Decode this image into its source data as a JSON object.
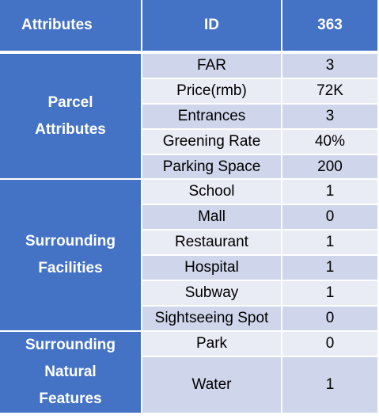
{
  "header": {
    "col1": "Attributes",
    "col2": "ID",
    "col3": "363"
  },
  "groups": [
    {
      "label_lines": [
        "Parcel",
        "Attributes"
      ]
    },
    {
      "label_lines": [
        "Surrounding",
        "Facilities"
      ]
    },
    {
      "label_lines": [
        "Surrounding",
        "Natural",
        "Features"
      ]
    }
  ],
  "rows": [
    {
      "attribute": "FAR",
      "value": "3"
    },
    {
      "attribute": "Price(rmb)",
      "value": "72K"
    },
    {
      "attribute": "Entrances",
      "value": "3"
    },
    {
      "attribute": "Greening Rate",
      "value": "40%"
    },
    {
      "attribute": "Parking Space",
      "value": "200"
    },
    {
      "attribute": "School",
      "value": "1"
    },
    {
      "attribute": "Mall",
      "value": "0"
    },
    {
      "attribute": "Restaurant",
      "value": "1"
    },
    {
      "attribute": "Hospital",
      "value": "1"
    },
    {
      "attribute": "Subway",
      "value": "1"
    },
    {
      "attribute": "Sightseeing Spot",
      "value": "0"
    },
    {
      "attribute": "Park",
      "value": "0"
    },
    {
      "attribute": "Water",
      "value": "1"
    }
  ],
  "colors": {
    "header_bg": "#4472c4",
    "row_dark": "#cfd5ea",
    "row_light": "#e9ebf5",
    "header_text": "#ffffff"
  }
}
